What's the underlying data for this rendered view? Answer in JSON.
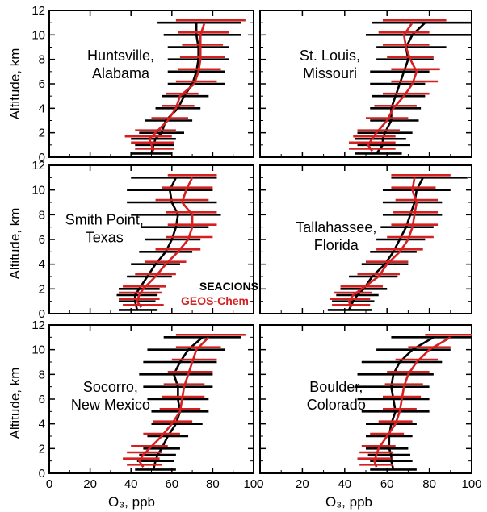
{
  "figure": {
    "ylabel": "Altitude, km",
    "xlabel": "O₃, ppb",
    "x_ticks": [
      0,
      20,
      40,
      60,
      80,
      100
    ],
    "y_ticks": [
      0,
      2,
      4,
      6,
      8,
      10,
      12
    ],
    "legend": [
      {
        "label": "SEACIONS",
        "color": "#000000"
      },
      {
        "label": "GEOS-Chem",
        "color": "#d42020"
      }
    ],
    "colors": {
      "observed": "#000000",
      "model": "#d42020"
    }
  },
  "chart_data": [
    {
      "type": "line",
      "site": "Huntsville,\nAlabama",
      "xlim": [
        0,
        100
      ],
      "ylim": [
        0,
        12
      ],
      "grid": false,
      "observed": {
        "name": "SEACIONS",
        "y": [
          0.3,
          1,
          1.5,
          2,
          3,
          4,
          5,
          6,
          7,
          8,
          9,
          10,
          11
        ],
        "x": [
          50,
          51,
          52,
          55,
          57,
          63,
          66,
          70,
          72,
          73,
          73,
          72,
          72
        ],
        "err": [
          [
            40,
            60
          ],
          [
            42,
            61
          ],
          [
            40,
            62
          ],
          [
            44,
            66
          ],
          [
            47,
            70
          ],
          [
            52,
            74
          ],
          [
            55,
            78
          ],
          [
            58,
            86
          ],
          [
            58,
            86
          ],
          [
            58,
            88
          ],
          [
            58,
            88
          ],
          [
            56,
            94
          ],
          [
            53,
            94
          ]
        ]
      },
      "model": {
        "name": "GEOS-Chem",
        "y": [
          0.5,
          1,
          1.5,
          2,
          3,
          4,
          5,
          6,
          7,
          8,
          9,
          10,
          11
        ],
        "x": [
          51,
          50,
          49,
          52,
          58,
          62,
          64,
          71,
          73,
          74,
          74,
          74,
          76
        ],
        "err": [
          [
            42,
            61
          ],
          [
            40,
            61
          ],
          [
            37,
            60
          ],
          [
            42,
            62
          ],
          [
            50,
            68
          ],
          [
            55,
            71
          ],
          [
            57,
            73
          ],
          [
            62,
            82
          ],
          [
            63,
            84
          ],
          [
            64,
            86
          ],
          [
            65,
            85
          ],
          [
            63,
            88
          ],
          [
            62,
            96
          ]
        ]
      }
    },
    {
      "type": "line",
      "site": "St. Louis,\nMissouri",
      "xlim": [
        0,
        100
      ],
      "ylim": [
        0,
        12
      ],
      "grid": false,
      "observed": {
        "name": "SEACIONS",
        "y": [
          0.3,
          1,
          1.5,
          2,
          3,
          4,
          5,
          6,
          7,
          8,
          9,
          10,
          11
        ],
        "x": [
          55,
          58,
          58,
          59,
          62,
          62,
          64,
          66,
          68,
          70,
          69,
          72,
          78
        ],
        "err": [
          [
            45,
            67
          ],
          [
            46,
            71
          ],
          [
            45,
            69
          ],
          [
            46,
            72
          ],
          [
            52,
            75
          ],
          [
            52,
            76
          ],
          [
            53,
            78
          ],
          [
            52,
            78
          ],
          [
            52,
            80
          ],
          [
            55,
            82
          ],
          [
            55,
            88
          ],
          [
            50,
            100
          ],
          [
            53,
            100
          ]
        ]
      },
      "model": {
        "name": "GEOS-Chem",
        "y": [
          0.5,
          1,
          1.5,
          2,
          3,
          4,
          5,
          6,
          7,
          8,
          9,
          10,
          11
        ],
        "x": [
          53,
          51,
          53,
          55,
          60,
          63,
          68,
          72,
          74,
          71,
          69,
          68,
          72
        ],
        "err": [
          [
            42,
            64
          ],
          [
            42,
            64
          ],
          [
            44,
            64
          ],
          [
            46,
            66
          ],
          [
            50,
            70
          ],
          [
            54,
            74
          ],
          [
            58,
            80
          ],
          [
            62,
            84
          ],
          [
            62,
            85
          ],
          [
            60,
            82
          ],
          [
            58,
            80
          ],
          [
            56,
            80
          ],
          [
            58,
            88
          ]
        ]
      }
    },
    {
      "type": "line",
      "site": "Smith Point,\nTexas",
      "xlim": [
        0,
        100
      ],
      "ylim": [
        0,
        12
      ],
      "grid": false,
      "observed": {
        "name": "SEACIONS",
        "y": [
          0.3,
          1,
          1.5,
          2,
          3,
          4,
          5,
          6,
          7,
          8,
          9,
          10,
          11
        ],
        "x": [
          43,
          42,
          42,
          44,
          48,
          52,
          57,
          60,
          62,
          63,
          60,
          59,
          62
        ],
        "err": [
          [
            34,
            53
          ],
          [
            34,
            52
          ],
          [
            33,
            53
          ],
          [
            34,
            54
          ],
          [
            38,
            60
          ],
          [
            40,
            64
          ],
          [
            44,
            70
          ],
          [
            47,
            74
          ],
          [
            45,
            78
          ],
          [
            40,
            84
          ],
          [
            38,
            82
          ],
          [
            38,
            80
          ],
          [
            40,
            82
          ]
        ]
      },
      "model": {
        "name": "GEOS-Chem",
        "y": [
          0.5,
          1,
          1.5,
          2,
          3,
          4,
          5,
          6,
          7,
          8,
          9,
          10,
          11
        ],
        "x": [
          45,
          43,
          44,
          46,
          52,
          57,
          63,
          68,
          70,
          70,
          65,
          67,
          70
        ],
        "err": [
          [
            36,
            56
          ],
          [
            34,
            54
          ],
          [
            34,
            55
          ],
          [
            36,
            57
          ],
          [
            42,
            62
          ],
          [
            47,
            67
          ],
          [
            52,
            74
          ],
          [
            57,
            80
          ],
          [
            58,
            82
          ],
          [
            57,
            82
          ],
          [
            52,
            78
          ],
          [
            55,
            80
          ],
          [
            58,
            82
          ]
        ]
      }
    },
    {
      "type": "line",
      "site": "Tallahassee,\nFlorida",
      "xlim": [
        0,
        100
      ],
      "ylim": [
        0,
        12
      ],
      "grid": false,
      "observed": {
        "name": "SEACIONS",
        "y": [
          0.3,
          1,
          1.5,
          2,
          3,
          4,
          5,
          6,
          7,
          8,
          9,
          10,
          11
        ],
        "x": [
          42,
          44,
          46,
          49,
          53,
          59,
          63,
          66,
          69,
          71,
          73,
          74,
          77
        ],
        "err": [
          [
            32,
            53
          ],
          [
            34,
            54
          ],
          [
            36,
            56
          ],
          [
            38,
            60
          ],
          [
            42,
            65
          ],
          [
            48,
            70
          ],
          [
            52,
            74
          ],
          [
            55,
            78
          ],
          [
            57,
            82
          ],
          [
            58,
            86
          ],
          [
            58,
            86
          ],
          [
            58,
            90
          ],
          [
            62,
            98
          ]
        ]
      },
      "model": {
        "name": "GEOS-Chem",
        "y": [
          0.5,
          1,
          1.5,
          2,
          3,
          4,
          5,
          6,
          7,
          8,
          9,
          10,
          11
        ],
        "x": [
          43,
          42,
          44,
          48,
          56,
          60,
          66,
          70,
          72,
          73,
          74,
          72,
          73
        ],
        "err": [
          [
            34,
            52
          ],
          [
            33,
            52
          ],
          [
            35,
            53
          ],
          [
            38,
            58
          ],
          [
            46,
            66
          ],
          [
            50,
            70
          ],
          [
            55,
            77
          ],
          [
            60,
            82
          ],
          [
            62,
            84
          ],
          [
            63,
            84
          ],
          [
            64,
            84
          ],
          [
            62,
            83
          ],
          [
            62,
            90
          ]
        ]
      }
    },
    {
      "type": "line",
      "site": "Socorro,\nNew Mexico",
      "xlim": [
        0,
        100
      ],
      "ylim": [
        0,
        12
      ],
      "grid": false,
      "observed": {
        "name": "SEACIONS",
        "y": [
          0.3,
          1,
          1.5,
          2,
          3,
          4,
          5,
          6,
          7,
          8,
          9,
          10,
          11
        ],
        "x": [
          51,
          52,
          53,
          55,
          58,
          62,
          64,
          63,
          63,
          61,
          64,
          68,
          75
        ],
        "err": [
          [
            42,
            62
          ],
          [
            43,
            61
          ],
          [
            44,
            62
          ],
          [
            46,
            64
          ],
          [
            48,
            68
          ],
          [
            50,
            75
          ],
          [
            50,
            78
          ],
          [
            48,
            78
          ],
          [
            46,
            80
          ],
          [
            44,
            80
          ],
          [
            46,
            82
          ],
          [
            48,
            86
          ],
          [
            56,
            94
          ]
        ]
      },
      "model": {
        "name": "GEOS-Chem",
        "y": [
          0.5,
          1,
          1.5,
          2,
          3,
          4,
          5,
          6,
          7,
          8,
          9,
          10,
          11
        ],
        "x": [
          46,
          44,
          46,
          49,
          55,
          60,
          64,
          65,
          66,
          68,
          70,
          72,
          78
        ],
        "err": [
          [
            38,
            55
          ],
          [
            36,
            54
          ],
          [
            38,
            55
          ],
          [
            40,
            58
          ],
          [
            46,
            64
          ],
          [
            51,
            70
          ],
          [
            54,
            74
          ],
          [
            55,
            76
          ],
          [
            56,
            76
          ],
          [
            58,
            80
          ],
          [
            60,
            82
          ],
          [
            62,
            84
          ],
          [
            62,
            96
          ]
        ]
      }
    },
    {
      "type": "line",
      "site": "Boulder,\nColorado",
      "xlim": [
        0,
        100
      ],
      "ylim": [
        0,
        12
      ],
      "grid": false,
      "observed": {
        "name": "SEACIONS",
        "y": [
          0.3,
          1,
          1.5,
          2,
          3,
          4,
          5,
          6,
          7,
          8,
          9,
          10,
          11
        ],
        "x": [
          63,
          62,
          62,
          61,
          61,
          62,
          64,
          63,
          62,
          63,
          66,
          72,
          82
        ],
        "err": [
          [
            52,
            74
          ],
          [
            52,
            72
          ],
          [
            51,
            71
          ],
          [
            50,
            70
          ],
          [
            50,
            72
          ],
          [
            50,
            74
          ],
          [
            48,
            80
          ],
          [
            46,
            80
          ],
          [
            45,
            80
          ],
          [
            46,
            82
          ],
          [
            48,
            86
          ],
          [
            55,
            90
          ],
          [
            62,
            100
          ]
        ]
      },
      "model": {
        "name": "GEOS-Chem",
        "y": [
          0.5,
          1,
          1.5,
          2,
          3,
          4,
          5,
          6,
          7,
          8,
          9,
          10,
          11
        ],
        "x": [
          55,
          54,
          55,
          56,
          60,
          64,
          66,
          67,
          68,
          70,
          74,
          80,
          90
        ],
        "err": [
          [
            47,
            63
          ],
          [
            46,
            62
          ],
          [
            47,
            63
          ],
          [
            48,
            64
          ],
          [
            52,
            68
          ],
          [
            56,
            72
          ],
          [
            58,
            74
          ],
          [
            58,
            76
          ],
          [
            59,
            77
          ],
          [
            60,
            80
          ],
          [
            64,
            84
          ],
          [
            70,
            90
          ],
          [
            78,
            100
          ]
        ]
      }
    }
  ]
}
